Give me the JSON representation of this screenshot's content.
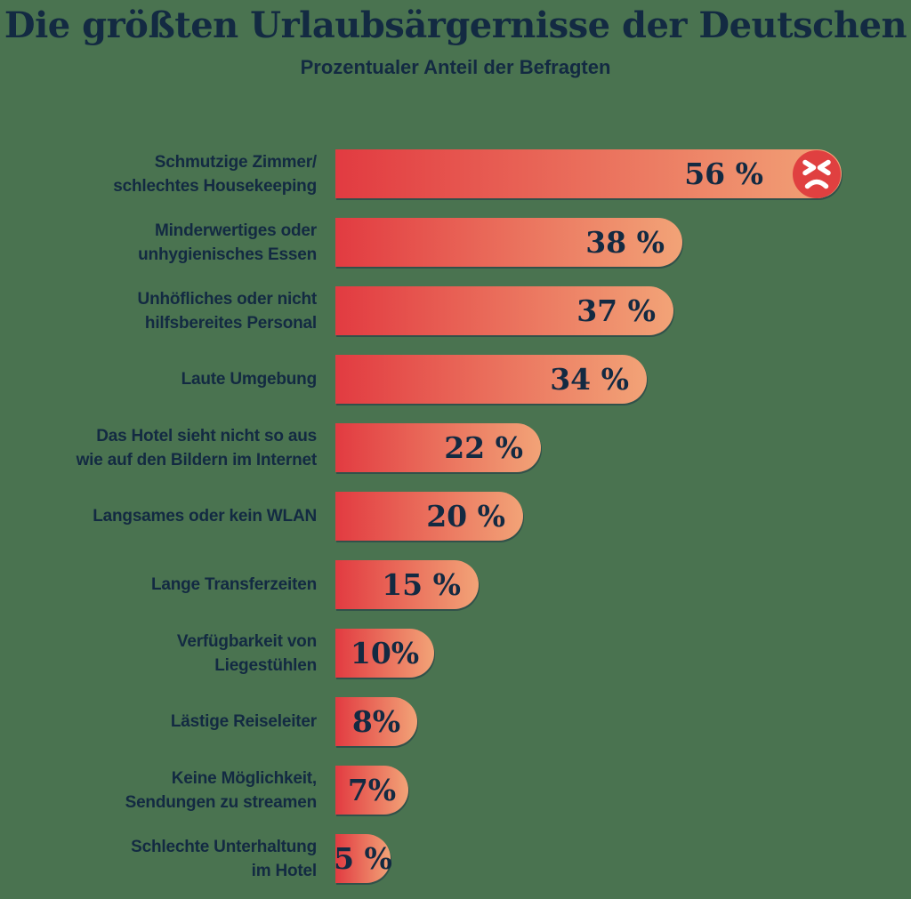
{
  "header": {
    "title": "Die größten Urlaubsärgernisse der Deutschen",
    "subtitle": "Prozentualer Anteil der Befragten"
  },
  "colors": {
    "background": "#4a7350",
    "grad_start": "#e23b41",
    "grad_end": "#f2a377",
    "navy": "#132a42",
    "angry_red": "#e04040",
    "white": "#ffffff"
  },
  "chart_data": {
    "type": "bar",
    "orientation": "horizontal",
    "title": "Die größten Urlaubsärgernisse der Deutschen",
    "subtitle": "Prozentualer Anteil der Befragten",
    "unit": "%",
    "xlim": [
      0,
      56
    ],
    "grid": false,
    "legend": false,
    "categories": [
      "Schmutzige Zimmer/ schlechtes Housekeeping",
      "Minderwertiges oder unhygienisches Essen",
      "Unhöfliches oder nicht hilfsbereites Personal",
      "Laute Umgebung",
      "Das Hotel sieht nicht so aus wie auf den Bildern im Internet",
      "Langsames oder kein WLAN",
      "Lange Transferzeiten",
      "Verfügbarkeit von Liegestühlen",
      "Lästige Reiseleiter",
      "Keine Möglichkeit, Sendungen zu streamen",
      "Schlechte Unterhaltung im Hotel"
    ],
    "category_lines": [
      [
        "Schmutzige Zimmer/",
        "schlechtes Housekeeping"
      ],
      [
        "Minderwertiges oder",
        "unhygienisches Essen"
      ],
      [
        "Unhöfliches oder nicht",
        "hilfsbereites Personal"
      ],
      [
        "Laute Umgebung"
      ],
      [
        "Das Hotel sieht nicht so aus",
        "wie auf den Bildern im Internet"
      ],
      [
        "Langsames oder kein WLAN"
      ],
      [
        "Lange Transferzeiten"
      ],
      [
        "Verfügbarkeit von",
        "Liegestühlen"
      ],
      [
        "Lästige Reiseleiter"
      ],
      [
        "Keine Möglichkeit,",
        "Sendungen zu streamen"
      ],
      [
        "Schlechte Unterhaltung",
        "im Hotel"
      ]
    ],
    "values": [
      56,
      38,
      37,
      34,
      22,
      20,
      15,
      10,
      8,
      7,
      5
    ],
    "display_values": [
      "56 %",
      "38 %",
      "37 %",
      "34 %",
      "22 %",
      "20 %",
      "15 %",
      "10%",
      "8%",
      "7%",
      "5 %"
    ],
    "icons": [
      {
        "row": 0,
        "icon": "angry-face"
      }
    ]
  }
}
